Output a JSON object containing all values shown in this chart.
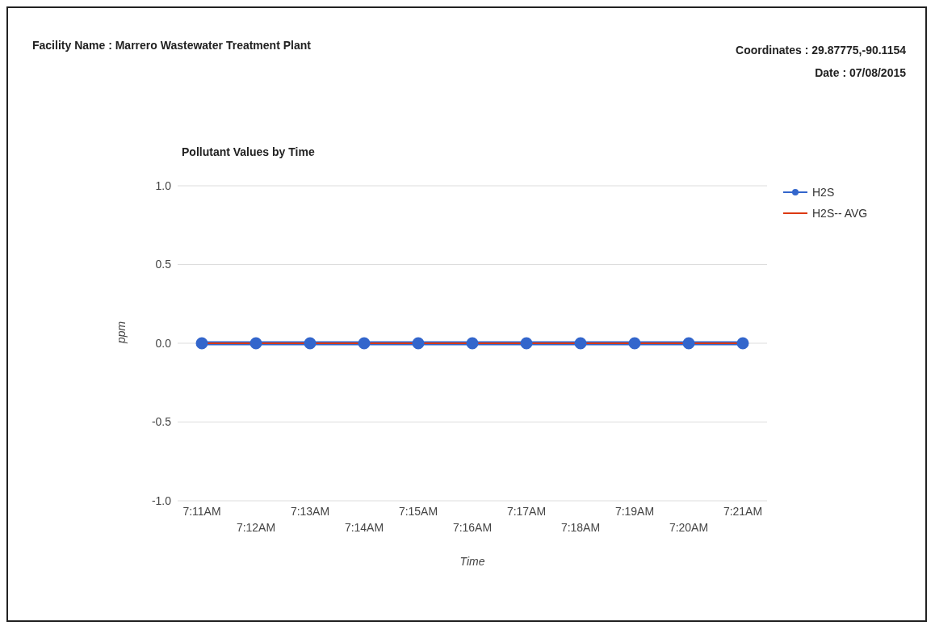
{
  "chart_data": {
    "type": "line",
    "title": "Facility Name : Marrero Wastewater Treatment Plant",
    "subtitle": "Pollutant Values by Time",
    "annotations": [
      "Coordinates : 29.87775,-90.1154",
      "Date : 07/08/2015"
    ],
    "xlabel": "Time",
    "ylabel": "ppm",
    "categories": [
      "7:11AM",
      "7:12AM",
      "7:13AM",
      "7:14AM",
      "7:15AM",
      "7:16AM",
      "7:17AM",
      "7:18AM",
      "7:19AM",
      "7:20AM",
      "7:21AM"
    ],
    "series": [
      {
        "name": "H2S",
        "color": "#3366cc",
        "marker": "circle",
        "values": [
          0,
          0,
          0,
          0,
          0,
          0,
          0,
          0,
          0,
          0,
          0
        ]
      },
      {
        "name": "H2S-- AVG",
        "color": "#dc3912",
        "values": [
          0,
          0,
          0,
          0,
          0,
          0,
          0,
          0,
          0,
          0,
          0
        ]
      }
    ],
    "ylim": [
      -1,
      1
    ],
    "yticks": [
      {
        "value": -1,
        "label": "-1.0"
      },
      {
        "value": -0.5,
        "label": "-0.5"
      },
      {
        "value": 0,
        "label": "0.0"
      },
      {
        "value": 0.5,
        "label": "0.5"
      },
      {
        "value": 1,
        "label": "1.0"
      }
    ],
    "grid": "y",
    "legend": "right"
  }
}
